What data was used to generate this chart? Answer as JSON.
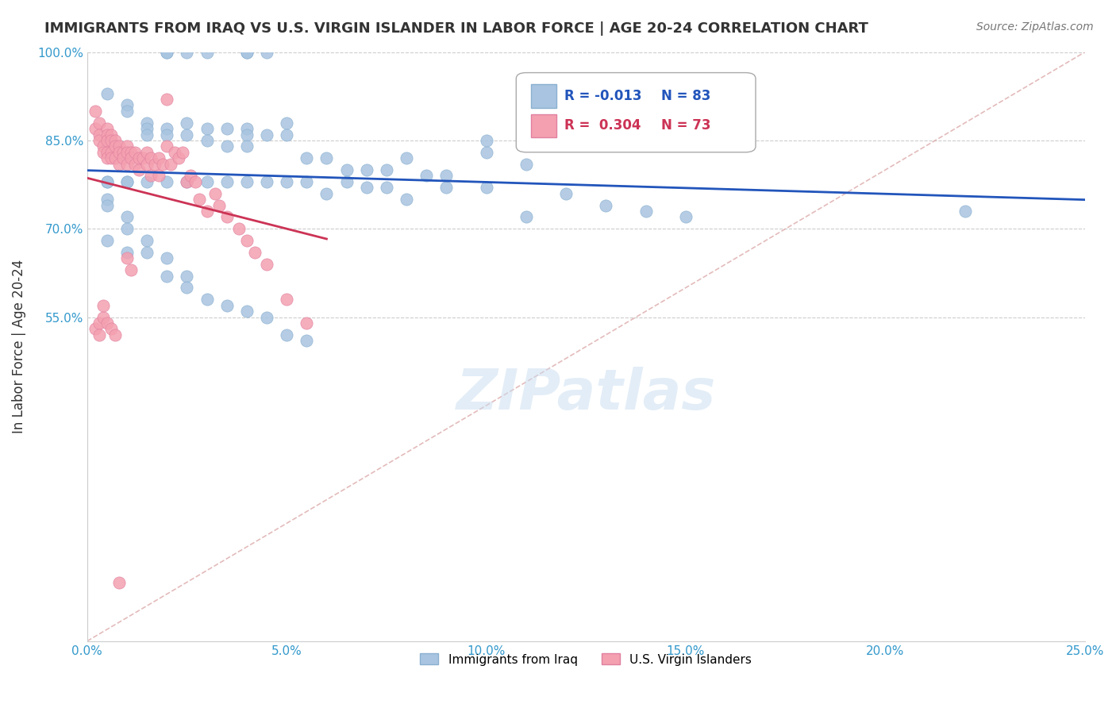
{
  "title": "IMMIGRANTS FROM IRAQ VS U.S. VIRGIN ISLANDER IN LABOR FORCE | AGE 20-24 CORRELATION CHART",
  "source": "Source: ZipAtlas.com",
  "xlabel": "",
  "ylabel": "In Labor Force | Age 20-24",
  "xlim": [
    0.0,
    0.25
  ],
  "ylim": [
    0.0,
    1.0
  ],
  "xtick_labels": [
    "0.0%",
    "5.0%",
    "10.0%",
    "15.0%",
    "20.0%",
    "25.0%"
  ],
  "xtick_vals": [
    0.0,
    0.05,
    0.1,
    0.15,
    0.2,
    0.25
  ],
  "ytick_labels": [
    "55.0%",
    "70.0%",
    "85.0%",
    "100.0%"
  ],
  "ytick_vals": [
    0.55,
    0.7,
    0.85,
    1.0
  ],
  "grid_color": "#cccccc",
  "background_color": "#ffffff",
  "blue_color": "#a8c4e0",
  "pink_color": "#f4a0b0",
  "blue_line_color": "#2255bb",
  "pink_line_color": "#cc3355",
  "diagonal_color": "#ddaaaa",
  "legend_R_blue": "-0.013",
  "legend_N_blue": "83",
  "legend_R_pink": "0.304",
  "legend_N_pink": "73",
  "label_blue": "Immigrants from Iraq",
  "label_pink": "U.S. Virgin Islanders",
  "watermark": "ZIPatlas",
  "blue_scatter_x": [
    0.02,
    0.02,
    0.025,
    0.03,
    0.04,
    0.04,
    0.045,
    0.005,
    0.01,
    0.01,
    0.015,
    0.015,
    0.015,
    0.02,
    0.02,
    0.025,
    0.025,
    0.03,
    0.03,
    0.035,
    0.035,
    0.04,
    0.04,
    0.04,
    0.045,
    0.05,
    0.05,
    0.055,
    0.06,
    0.065,
    0.07,
    0.075,
    0.08,
    0.085,
    0.09,
    0.1,
    0.1,
    0.11,
    0.12,
    0.13,
    0.005,
    0.005,
    0.01,
    0.01,
    0.015,
    0.02,
    0.025,
    0.03,
    0.035,
    0.04,
    0.045,
    0.05,
    0.055,
    0.06,
    0.065,
    0.07,
    0.075,
    0.08,
    0.09,
    0.1,
    0.11,
    0.14,
    0.15,
    0.22,
    0.005,
    0.005,
    0.005,
    0.01,
    0.01,
    0.01,
    0.015,
    0.015,
    0.02,
    0.02,
    0.025,
    0.025,
    0.03,
    0.035,
    0.04,
    0.045,
    0.05,
    0.055,
    0.13
  ],
  "blue_scatter_y": [
    1.0,
    1.0,
    1.0,
    1.0,
    1.0,
    1.0,
    1.0,
    0.93,
    0.91,
    0.9,
    0.88,
    0.87,
    0.86,
    0.87,
    0.86,
    0.88,
    0.86,
    0.87,
    0.85,
    0.87,
    0.84,
    0.87,
    0.86,
    0.84,
    0.86,
    0.88,
    0.86,
    0.82,
    0.82,
    0.8,
    0.8,
    0.8,
    0.82,
    0.79,
    0.79,
    0.85,
    0.83,
    0.81,
    0.76,
    0.91,
    0.78,
    0.78,
    0.78,
    0.78,
    0.78,
    0.78,
    0.78,
    0.78,
    0.78,
    0.78,
    0.78,
    0.78,
    0.78,
    0.76,
    0.78,
    0.77,
    0.77,
    0.75,
    0.77,
    0.77,
    0.72,
    0.73,
    0.72,
    0.73,
    0.75,
    0.74,
    0.68,
    0.66,
    0.72,
    0.7,
    0.68,
    0.66,
    0.65,
    0.62,
    0.62,
    0.6,
    0.58,
    0.57,
    0.56,
    0.55,
    0.52,
    0.51,
    0.74
  ],
  "pink_scatter_x": [
    0.002,
    0.002,
    0.003,
    0.003,
    0.003,
    0.004,
    0.004,
    0.005,
    0.005,
    0.005,
    0.005,
    0.005,
    0.006,
    0.006,
    0.006,
    0.006,
    0.007,
    0.007,
    0.007,
    0.008,
    0.008,
    0.008,
    0.009,
    0.009,
    0.01,
    0.01,
    0.01,
    0.011,
    0.011,
    0.012,
    0.012,
    0.013,
    0.013,
    0.014,
    0.015,
    0.015,
    0.016,
    0.016,
    0.017,
    0.018,
    0.018,
    0.019,
    0.02,
    0.02,
    0.021,
    0.022,
    0.023,
    0.024,
    0.025,
    0.026,
    0.027,
    0.028,
    0.03,
    0.032,
    0.033,
    0.035,
    0.038,
    0.04,
    0.042,
    0.045,
    0.05,
    0.055,
    0.01,
    0.011,
    0.002,
    0.003,
    0.003,
    0.004,
    0.004,
    0.005,
    0.006,
    0.007,
    0.008
  ],
  "pink_scatter_y": [
    0.9,
    0.87,
    0.88,
    0.86,
    0.85,
    0.84,
    0.83,
    0.87,
    0.86,
    0.85,
    0.83,
    0.82,
    0.86,
    0.85,
    0.83,
    0.82,
    0.85,
    0.84,
    0.82,
    0.84,
    0.83,
    0.81,
    0.83,
    0.82,
    0.84,
    0.83,
    0.81,
    0.83,
    0.82,
    0.83,
    0.81,
    0.82,
    0.8,
    0.82,
    0.83,
    0.81,
    0.82,
    0.79,
    0.81,
    0.82,
    0.79,
    0.81,
    0.92,
    0.84,
    0.81,
    0.83,
    0.82,
    0.83,
    0.78,
    0.79,
    0.78,
    0.75,
    0.73,
    0.76,
    0.74,
    0.72,
    0.7,
    0.68,
    0.66,
    0.64,
    0.58,
    0.54,
    0.65,
    0.63,
    0.53,
    0.54,
    0.52,
    0.55,
    0.57,
    0.54,
    0.53,
    0.52,
    0.1
  ]
}
